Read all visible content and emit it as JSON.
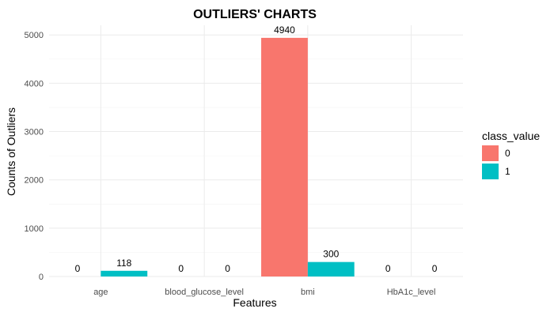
{
  "chart_data": {
    "type": "bar",
    "title": "OUTLIERS' CHARTS",
    "xlabel": "Features",
    "ylabel": "Counts of Outliers",
    "categories": [
      "age",
      "blood_glucose_level",
      "bmi",
      "HbA1c_level"
    ],
    "series": [
      {
        "name": "0",
        "color": "#F8766D",
        "values": [
          0,
          0,
          4940,
          0
        ]
      },
      {
        "name": "1",
        "color": "#00BFC4",
        "values": [
          118,
          0,
          300,
          0
        ]
      }
    ],
    "ylim": [
      0,
      5200
    ],
    "yticks": [
      0,
      1000,
      2000,
      3000,
      4000,
      5000
    ],
    "legend": {
      "title": "class_value",
      "position": "right"
    },
    "grid": true
  }
}
